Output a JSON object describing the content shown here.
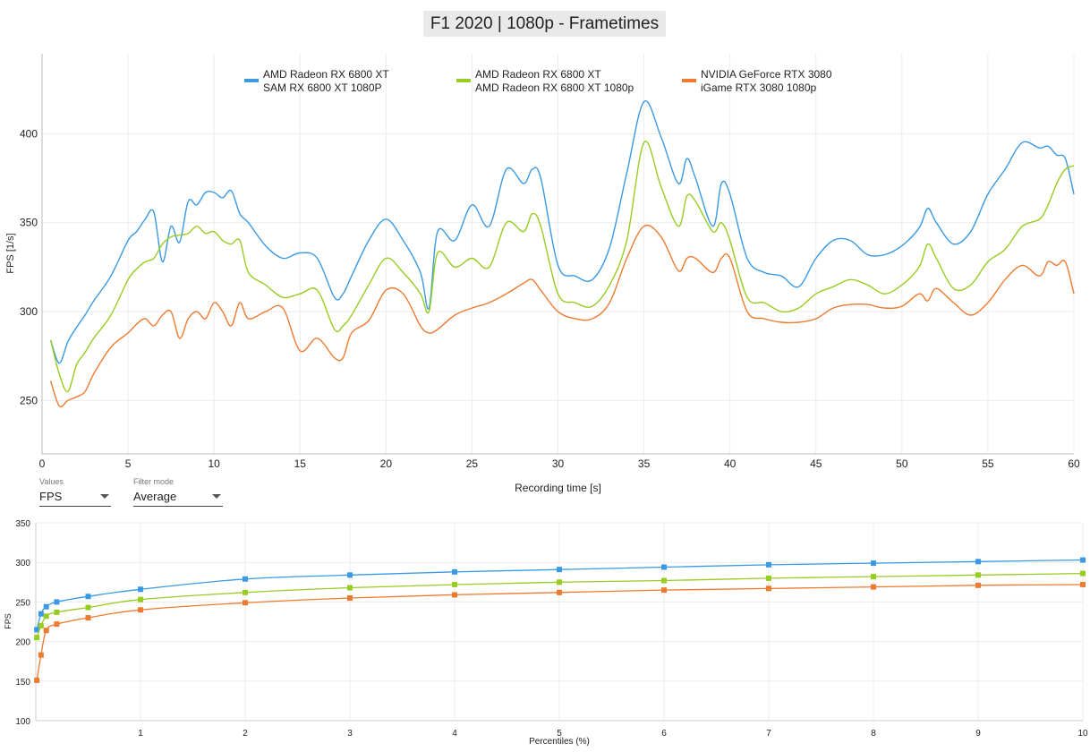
{
  "title": "F1 2020 | 1080p - Frametimes",
  "colors": {
    "blue": "#3a99e3",
    "green": "#97cc20",
    "orange": "#ee7a30"
  },
  "controls": {
    "values": {
      "caption": "Values",
      "selected": "FPS"
    },
    "filter": {
      "caption": "Filter mode",
      "selected": "Average"
    }
  },
  "legend": [
    {
      "line1": "AMD Radeon RX 6800 XT",
      "line2": "SAM RX 6800 XT 1080P",
      "color": "#3a99e3"
    },
    {
      "line1": "AMD Radeon RX 6800 XT",
      "line2": "AMD Radeon RX 6800 XT 1080p",
      "color": "#97cc20"
    },
    {
      "line1": "NVIDIA GeForce RTX 3080",
      "line2": "iGame RTX 3080 1080p",
      "color": "#ee7a30"
    }
  ],
  "chart_data": [
    {
      "type": "line",
      "title": "F1 2020 | 1080p - Frametimes",
      "xlabel": "Recording time [s]",
      "ylabel": "FPS [1/s]",
      "xlim": [
        0,
        60
      ],
      "ylim": [
        220,
        445
      ],
      "xticks": [
        "0",
        "5",
        "10",
        "15",
        "20",
        "25",
        "30",
        "35",
        "40",
        "45",
        "50",
        "55",
        "60"
      ],
      "yticks": [
        "250",
        "300",
        "350",
        "400"
      ],
      "grid": true,
      "legend_position": "top",
      "series": [
        {
          "name": "SAM RX 6800 XT 1080P",
          "color": "#3a99e3",
          "x": [
            0.5,
            1,
            1.5,
            2,
            2.5,
            3,
            4,
            5,
            5.5,
            6,
            6.5,
            7,
            7.5,
            8,
            8.5,
            9,
            9.5,
            10,
            10.5,
            11,
            11.5,
            12,
            13,
            14,
            15,
            16,
            17,
            17.5,
            18,
            19,
            20,
            21,
            22,
            22.5,
            23,
            24,
            25,
            26,
            27,
            28,
            28.5,
            29,
            30,
            31,
            32,
            33,
            34,
            35,
            36,
            37,
            37.5,
            38,
            39,
            39.5,
            40,
            41,
            42,
            43,
            44,
            45,
            46,
            47,
            48,
            49,
            50,
            51,
            51.5,
            52,
            53,
            54,
            55,
            56,
            57,
            58,
            58.5,
            59,
            59.5,
            60
          ],
          "values": [
            284,
            271,
            283,
            291,
            298,
            306,
            320,
            340,
            345,
            352,
            356,
            328,
            348,
            339,
            362,
            360,
            367,
            367,
            364,
            368,
            355,
            350,
            337,
            330,
            333,
            330,
            308,
            310,
            320,
            340,
            352,
            340,
            322,
            302,
            345,
            340,
            360,
            348,
            380,
            372,
            380,
            375,
            326,
            320,
            318,
            336,
            378,
            418,
            398,
            372,
            386,
            375,
            348,
            372,
            366,
            330,
            322,
            320,
            314,
            330,
            340,
            340,
            332,
            332,
            337,
            347,
            358,
            350,
            338,
            345,
            366,
            380,
            395,
            392,
            393,
            388,
            386,
            366
          ]
        },
        {
          "name": "AMD Radeon RX 6800 XT 1080p",
          "color": "#97cc20",
          "x": [
            0.5,
            1,
            1.5,
            2,
            2.5,
            3,
            4,
            5,
            5.5,
            6,
            6.5,
            7,
            7.5,
            8,
            8.5,
            9,
            9.5,
            10,
            10.5,
            11,
            11.5,
            12,
            13,
            14,
            15,
            16,
            17,
            17.5,
            18,
            19,
            20,
            21,
            22,
            22.5,
            23,
            24,
            25,
            26,
            27,
            28,
            28.5,
            29,
            30,
            31,
            32,
            33,
            34,
            35,
            36,
            37,
            37.5,
            38,
            39,
            39.5,
            40,
            41,
            42,
            43,
            44,
            45,
            46,
            47,
            48,
            49,
            50,
            51,
            51.5,
            52,
            53,
            54,
            55,
            56,
            57,
            58,
            58.5,
            59,
            59.5,
            60
          ],
          "values": [
            284,
            265,
            255,
            270,
            277,
            285,
            298,
            318,
            324,
            328,
            330,
            338,
            342,
            343,
            344,
            348,
            344,
            345,
            340,
            338,
            340,
            322,
            315,
            308,
            310,
            312,
            290,
            292,
            298,
            315,
            330,
            322,
            310,
            300,
            333,
            325,
            330,
            325,
            350,
            345,
            355,
            348,
            310,
            305,
            303,
            315,
            340,
            395,
            370,
            348,
            365,
            362,
            345,
            350,
            340,
            308,
            305,
            300,
            302,
            310,
            314,
            318,
            315,
            310,
            315,
            325,
            338,
            330,
            313,
            315,
            328,
            335,
            348,
            352,
            360,
            372,
            380,
            382
          ]
        },
        {
          "name": "iGame RTX 3080 1080p",
          "color": "#ee7a30",
          "x": [
            0.5,
            1,
            1.5,
            2,
            2.5,
            3,
            4,
            5,
            5.5,
            6,
            6.5,
            7,
            7.5,
            8,
            8.5,
            9,
            9.5,
            10,
            10.5,
            11,
            11.5,
            12,
            13,
            14,
            15,
            16,
            17,
            17.5,
            18,
            19,
            20,
            21,
            22,
            22.5,
            23,
            24,
            25,
            26,
            27,
            28,
            28.5,
            29,
            30,
            31,
            32,
            33,
            34,
            35,
            36,
            37,
            37.5,
            38,
            39,
            39.5,
            40,
            41,
            42,
            43,
            44,
            45,
            46,
            47,
            48,
            49,
            50,
            51,
            51.5,
            52,
            53,
            54,
            55,
            56,
            57,
            58,
            58.5,
            59,
            59.5,
            60
          ],
          "values": [
            261,
            247,
            250,
            252,
            255,
            265,
            280,
            288,
            293,
            296,
            292,
            298,
            300,
            285,
            296,
            300,
            296,
            305,
            300,
            292,
            305,
            296,
            300,
            302,
            278,
            285,
            274,
            274,
            288,
            295,
            312,
            310,
            292,
            288,
            290,
            298,
            302,
            305,
            310,
            316,
            318,
            312,
            300,
            296,
            296,
            305,
            330,
            348,
            342,
            323,
            330,
            330,
            322,
            330,
            330,
            300,
            296,
            294,
            294,
            296,
            302,
            304,
            304,
            302,
            303,
            310,
            306,
            313,
            305,
            298,
            305,
            318,
            326,
            320,
            328,
            326,
            328,
            310
          ]
        }
      ]
    },
    {
      "type": "line",
      "xlabel": "Percentiles (%)",
      "ylabel": "FPS",
      "xlim": [
        0,
        10
      ],
      "ylim": [
        100,
        350
      ],
      "xticks": [
        "1",
        "2",
        "3",
        "4",
        "5",
        "6",
        "7",
        "8",
        "9",
        "10"
      ],
      "yticks": [
        "100",
        "150",
        "200",
        "250",
        "300",
        "350"
      ],
      "grid": true,
      "markers": "square",
      "series": [
        {
          "name": "SAM RX 6800 XT 1080P",
          "color": "#3a99e3",
          "x": [
            0.01,
            0.05,
            0.1,
            0.2,
            0.5,
            1,
            2,
            3,
            4,
            5,
            6,
            7,
            8,
            9,
            10
          ],
          "values": [
            215,
            235,
            244,
            250,
            257,
            266,
            279,
            284,
            288,
            291,
            294,
            297,
            299,
            301,
            303
          ]
        },
        {
          "name": "AMD Radeon RX 6800 XT 1080p",
          "color": "#97cc20",
          "x": [
            0.01,
            0.05,
            0.1,
            0.2,
            0.5,
            1,
            2,
            3,
            4,
            5,
            6,
            7,
            8,
            9,
            10
          ],
          "values": [
            205,
            220,
            232,
            237,
            243,
            253,
            262,
            268,
            272,
            275,
            277,
            280,
            282,
            284,
            286
          ]
        },
        {
          "name": "iGame RTX 3080 1080p",
          "color": "#ee7a30",
          "x": [
            0.01,
            0.05,
            0.1,
            0.2,
            0.5,
            1,
            2,
            3,
            4,
            5,
            6,
            7,
            8,
            9,
            10
          ],
          "values": [
            151,
            183,
            214,
            222,
            230,
            240,
            249,
            255,
            259,
            262,
            265,
            267,
            269,
            271,
            272
          ]
        }
      ]
    }
  ]
}
